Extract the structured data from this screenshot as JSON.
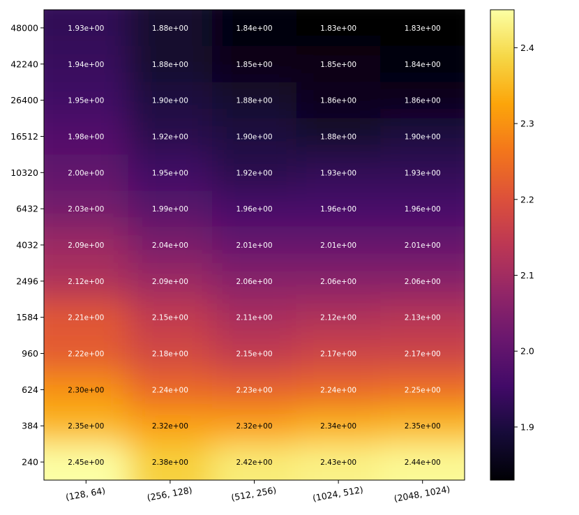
{
  "chart_data": {
    "type": "heatmap",
    "title": "",
    "xlabel": "",
    "ylabel": "",
    "x_categories": [
      "(128, 64)",
      "(256, 128)",
      "(512, 256)",
      "(1024, 512)",
      "(2048, 1024)"
    ],
    "y_categories": [
      "48000",
      "42240",
      "26400",
      "16512",
      "10320",
      "6432",
      "4032",
      "2496",
      "1584",
      "960",
      "624",
      "384",
      "240"
    ],
    "values": [
      [
        1.93,
        1.88,
        1.84,
        1.83,
        1.83
      ],
      [
        1.94,
        1.88,
        1.85,
        1.85,
        1.84
      ],
      [
        1.95,
        1.9,
        1.88,
        1.86,
        1.86
      ],
      [
        1.98,
        1.92,
        1.9,
        1.88,
        1.9
      ],
      [
        2.0,
        1.95,
        1.92,
        1.93,
        1.93
      ],
      [
        2.03,
        1.99,
        1.96,
        1.96,
        1.96
      ],
      [
        2.09,
        2.04,
        2.01,
        2.01,
        2.01
      ],
      [
        2.12,
        2.09,
        2.06,
        2.06,
        2.06
      ],
      [
        2.21,
        2.15,
        2.11,
        2.12,
        2.13
      ],
      [
        2.22,
        2.18,
        2.15,
        2.17,
        2.17
      ],
      [
        2.3,
        2.24,
        2.23,
        2.24,
        2.25
      ],
      [
        2.35,
        2.32,
        2.32,
        2.34,
        2.35
      ],
      [
        2.45,
        2.38,
        2.42,
        2.43,
        2.44
      ]
    ],
    "cell_labels": [
      [
        "1.93e+00",
        "1.88e+00",
        "1.84e+00",
        "1.83e+00",
        "1.83e+00"
      ],
      [
        "1.94e+00",
        "1.88e+00",
        "1.85e+00",
        "1.85e+00",
        "1.84e+00"
      ],
      [
        "1.95e+00",
        "1.90e+00",
        "1.88e+00",
        "1.86e+00",
        "1.86e+00"
      ],
      [
        "1.98e+00",
        "1.92e+00",
        "1.90e+00",
        "1.88e+00",
        "1.90e+00"
      ],
      [
        "2.00e+00",
        "1.95e+00",
        "1.92e+00",
        "1.93e+00",
        "1.93e+00"
      ],
      [
        "2.03e+00",
        "1.99e+00",
        "1.96e+00",
        "1.96e+00",
        "1.96e+00"
      ],
      [
        "2.09e+00",
        "2.04e+00",
        "2.01e+00",
        "2.01e+00",
        "2.01e+00"
      ],
      [
        "2.12e+00",
        "2.09e+00",
        "2.06e+00",
        "2.06e+00",
        "2.06e+00"
      ],
      [
        "2.21e+00",
        "2.15e+00",
        "2.11e+00",
        "2.12e+00",
        "2.13e+00"
      ],
      [
        "2.22e+00",
        "2.18e+00",
        "2.15e+00",
        "2.17e+00",
        "2.17e+00"
      ],
      [
        "2.30e+00",
        "2.24e+00",
        "2.23e+00",
        "2.24e+00",
        "2.25e+00"
      ],
      [
        "2.35e+00",
        "2.32e+00",
        "2.32e+00",
        "2.34e+00",
        "2.35e+00"
      ],
      [
        "2.45e+00",
        "2.38e+00",
        "2.42e+00",
        "2.43e+00",
        "2.44e+00"
      ]
    ],
    "colormap": "inferno",
    "interpolation": "smooth",
    "colorbar": {
      "range": [
        1.83,
        2.45
      ],
      "ticks": [
        1.9,
        2.0,
        2.1,
        2.2,
        2.3,
        2.4
      ],
      "tick_labels": [
        "1.9",
        "2.0",
        "2.1",
        "2.2",
        "2.3",
        "2.4"
      ]
    },
    "x_tick_rotation_deg": -10
  }
}
